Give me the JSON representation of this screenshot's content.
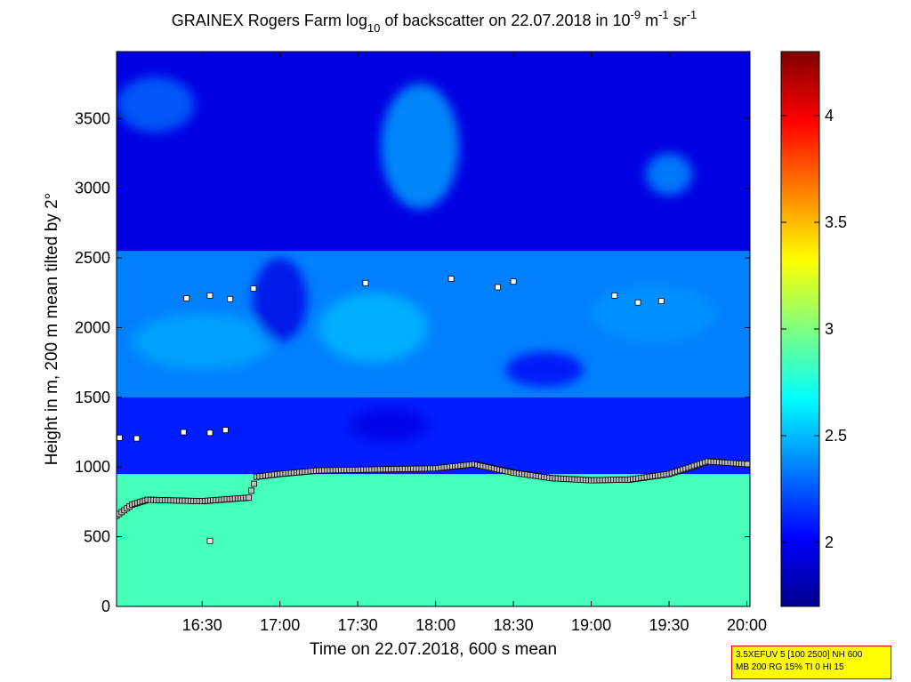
{
  "chart_data": {
    "type": "heatmap",
    "title": {
      "part1": "GRAINEX Rogers Farm log",
      "sub10": "10",
      "part2": " of backscatter on 22.07.2018 in 10",
      "sup1": "-9",
      "part3": " m",
      "sup2": "-1",
      "part4": " sr",
      "sup3": "-1"
    },
    "xlabel": "Time on 22.07.2018, 600 s mean",
    "ylabel": "Height in m, 200 m mean tilted by 2°",
    "x_ticks": [
      "16:30",
      "17:00",
      "17:30",
      "18:00",
      "18:30",
      "19:00",
      "19:30",
      "20:00"
    ],
    "x_tick_hours": [
      16.5,
      17.0,
      17.5,
      18.0,
      18.5,
      19.0,
      19.5,
      20.0
    ],
    "xlim_hours": [
      15.95,
      20.02
    ],
    "y_ticks": [
      "0",
      "500",
      "1000",
      "1500",
      "2000",
      "2500",
      "3000",
      "3500"
    ],
    "y_tick_values": [
      0,
      500,
      1000,
      1500,
      2000,
      2500,
      3000,
      3500
    ],
    "ylim": [
      0,
      3980
    ],
    "colorbar": {
      "colormap": "jet",
      "range": [
        1.7,
        4.3
      ],
      "ticks": [
        "2",
        "2.5",
        "3",
        "3.5",
        "4"
      ],
      "tick_values": [
        2,
        2.5,
        3,
        3.5,
        4
      ]
    },
    "layers": [
      {
        "height_range": [
          0,
          950
        ],
        "log_backscatter": 2.85
      },
      {
        "height_range": [
          950,
          1500
        ],
        "log_backscatter": 2.1
      },
      {
        "height_range": [
          1500,
          2550
        ],
        "log_backscatter": 2.35
      },
      {
        "height_range": [
          2550,
          3980
        ],
        "log_backscatter": 1.95
      }
    ],
    "layer_heights": [
      {
        "time": 15.95,
        "height": 650
      },
      {
        "time": 16.05,
        "height": 730
      },
      {
        "time": 16.15,
        "height": 765
      },
      {
        "time": 16.5,
        "height": 755
      },
      {
        "time": 16.8,
        "height": 780
      },
      {
        "time": 16.85,
        "height": 930
      },
      {
        "time": 17.0,
        "height": 950
      },
      {
        "time": 17.25,
        "height": 975
      },
      {
        "time": 17.5,
        "height": 980
      },
      {
        "time": 17.75,
        "height": 985
      },
      {
        "time": 18.0,
        "height": 990
      },
      {
        "time": 18.25,
        "height": 1020
      },
      {
        "time": 18.5,
        "height": 960
      },
      {
        "time": 18.75,
        "height": 920
      },
      {
        "time": 19.0,
        "height": 905
      },
      {
        "time": 19.25,
        "height": 910
      },
      {
        "time": 19.5,
        "height": 950
      },
      {
        "time": 19.75,
        "height": 1040
      },
      {
        "time": 20.02,
        "height": 1020
      }
    ],
    "upper_layer_points": [
      {
        "time": 15.97,
        "height": 1210
      },
      {
        "time": 16.08,
        "height": 1205
      },
      {
        "time": 16.38,
        "height": 1250
      },
      {
        "time": 16.55,
        "height": 1245
      },
      {
        "time": 16.65,
        "height": 1265
      },
      {
        "time": 16.4,
        "height": 2210
      },
      {
        "time": 16.55,
        "height": 2230
      },
      {
        "time": 16.68,
        "height": 2205
      },
      {
        "time": 16.83,
        "height": 2280
      },
      {
        "time": 17.55,
        "height": 2320
      },
      {
        "time": 18.1,
        "height": 2350
      },
      {
        "time": 18.4,
        "height": 2290
      },
      {
        "time": 18.5,
        "height": 2330
      },
      {
        "time": 19.15,
        "height": 2230
      },
      {
        "time": 19.3,
        "height": 2180
      },
      {
        "time": 19.45,
        "height": 2190
      },
      {
        "time": 16.55,
        "height": 470
      }
    ]
  },
  "info_box": {
    "line1": "3.5XEFUV 5 [100 2500] NH 600",
    "line2": "MB 200 RG 15% TI 0 HI 15"
  }
}
